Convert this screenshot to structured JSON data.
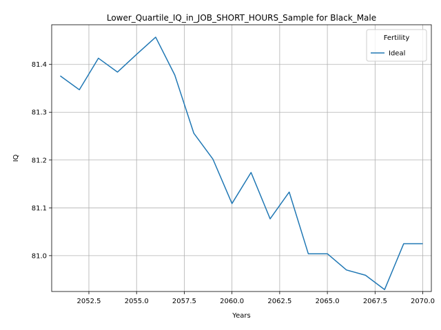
{
  "chart_data": {
    "type": "line",
    "title": "Lower_Quartile_IQ_in_JOB_SHORT_HOURS_Sample for Black_Male",
    "xlabel": "Years",
    "ylabel": "IQ",
    "xlim": [
      2050.55,
      2070.45
    ],
    "ylim": [
      80.925,
      81.483
    ],
    "x_ticks": [
      2052.5,
      2055.0,
      2057.5,
      2060.0,
      2062.5,
      2065.0,
      2067.5,
      2070.0
    ],
    "x_tick_labels": [
      "2052.5",
      "2055.0",
      "2057.5",
      "2060.0",
      "2062.5",
      "2065.0",
      "2067.5",
      "2070.0"
    ],
    "y_ticks": [
      81.0,
      81.1,
      81.2,
      81.3,
      81.4
    ],
    "y_tick_labels": [
      "81.0",
      "81.1",
      "81.2",
      "81.3",
      "81.4"
    ],
    "grid": true,
    "legend": {
      "title": "Fertility",
      "placement": "top-right"
    },
    "series": [
      {
        "name": "Ideal",
        "color": "#1f77b4",
        "x": [
          2051,
          2052,
          2053,
          2054,
          2055,
          2056,
          2057,
          2058,
          2059,
          2060,
          2061,
          2062,
          2063,
          2064,
          2065,
          2066,
          2067,
          2068,
          2069,
          2070
        ],
        "values": [
          81.376,
          81.347,
          81.413,
          81.384,
          81.421,
          81.457,
          81.378,
          81.256,
          81.202,
          81.109,
          81.174,
          81.077,
          81.133,
          81.004,
          81.004,
          80.97,
          80.959,
          80.929,
          81.025,
          81.025
        ]
      }
    ]
  }
}
